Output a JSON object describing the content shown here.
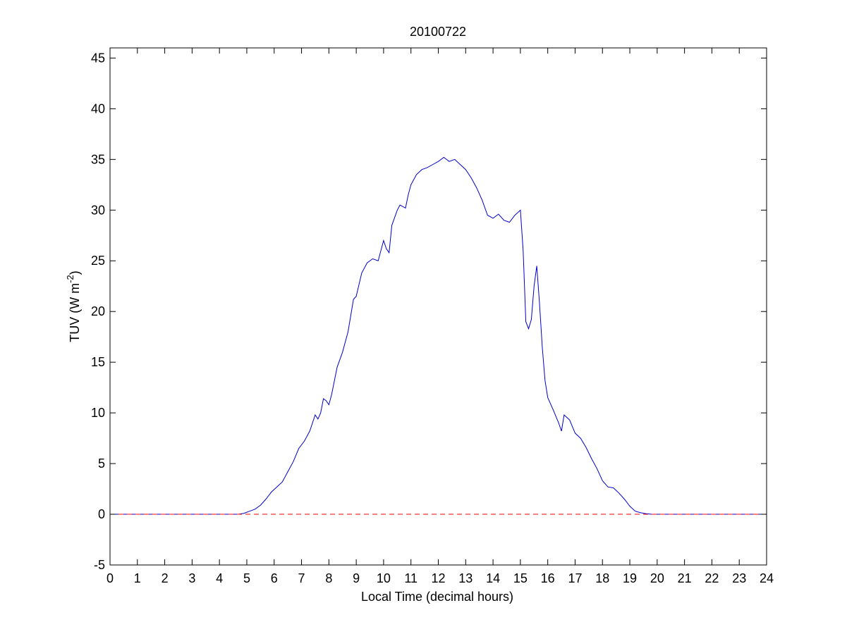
{
  "chart_data": {
    "type": "line",
    "title": "20100722",
    "xlabel": "Local Time (decimal hours)",
    "ylabel_main": "TUV (W m",
    "ylabel_exp": "-2",
    "ylabel_close": ")",
    "xlim": [
      0,
      24
    ],
    "ylim": [
      -5,
      46
    ],
    "xticks": [
      0,
      1,
      2,
      3,
      4,
      5,
      6,
      7,
      8,
      9,
      10,
      11,
      12,
      13,
      14,
      15,
      16,
      17,
      18,
      19,
      20,
      21,
      22,
      23,
      24
    ],
    "yticks": [
      -5,
      0,
      5,
      10,
      15,
      20,
      25,
      30,
      35,
      40,
      45
    ],
    "grid": false,
    "series": [
      {
        "color": "#0000cc",
        "style": "solid",
        "x": [
          0,
          4.7,
          4.9,
          5.1,
          5.3,
          5.5,
          5.7,
          5.9,
          6.1,
          6.3,
          6.5,
          6.7,
          6.9,
          7.1,
          7.3,
          7.5,
          7.6,
          7.7,
          7.8,
          7.9,
          8.0,
          8.1,
          8.3,
          8.5,
          8.7,
          8.9,
          9.0,
          9.2,
          9.4,
          9.6,
          9.8,
          10.0,
          10.1,
          10.2,
          10.3,
          10.5,
          10.6,
          10.8,
          10.9,
          11.0,
          11.2,
          11.4,
          11.6,
          11.8,
          12.0,
          12.2,
          12.4,
          12.6,
          12.8,
          13.0,
          13.2,
          13.4,
          13.6,
          13.8,
          14.0,
          14.2,
          14.4,
          14.6,
          14.8,
          15.0,
          15.1,
          15.2,
          15.3,
          15.4,
          15.5,
          15.6,
          15.7,
          15.8,
          15.9,
          16.0,
          16.2,
          16.4,
          16.5,
          16.6,
          16.8,
          17.0,
          17.2,
          17.4,
          17.6,
          17.8,
          18.0,
          18.2,
          18.4,
          18.6,
          18.8,
          19.0,
          19.2,
          19.4,
          19.6,
          19.8,
          20.0,
          24
        ],
        "y": [
          0,
          0,
          0.1,
          0.3,
          0.5,
          0.9,
          1.5,
          2.2,
          2.7,
          3.2,
          4.2,
          5.2,
          6.5,
          7.2,
          8.2,
          9.8,
          9.4,
          10.0,
          11.4,
          11.2,
          10.8,
          11.8,
          14.5,
          16.0,
          18.0,
          21.2,
          21.5,
          23.8,
          24.8,
          25.2,
          25.0,
          27.0,
          26.2,
          25.8,
          28.5,
          30.0,
          30.5,
          30.2,
          31.5,
          32.5,
          33.5,
          34.0,
          34.2,
          34.5,
          34.8,
          35.2,
          34.8,
          35.0,
          34.5,
          34.0,
          33.2,
          32.2,
          31.0,
          29.5,
          29.2,
          29.6,
          29.0,
          28.8,
          29.5,
          30.0,
          26.0,
          19.0,
          18.3,
          19.2,
          22.5,
          24.5,
          20.8,
          16.5,
          13.2,
          11.5,
          10.3,
          9.0,
          8.2,
          9.8,
          9.3,
          8.0,
          7.5,
          6.6,
          5.5,
          4.5,
          3.3,
          2.7,
          2.6,
          2.1,
          1.5,
          0.8,
          0.3,
          0.15,
          0.05,
          0,
          0,
          0
        ]
      },
      {
        "color": "#ff0000",
        "style": "dashed",
        "x": [
          0,
          24
        ],
        "y": [
          0,
          0
        ]
      }
    ]
  }
}
